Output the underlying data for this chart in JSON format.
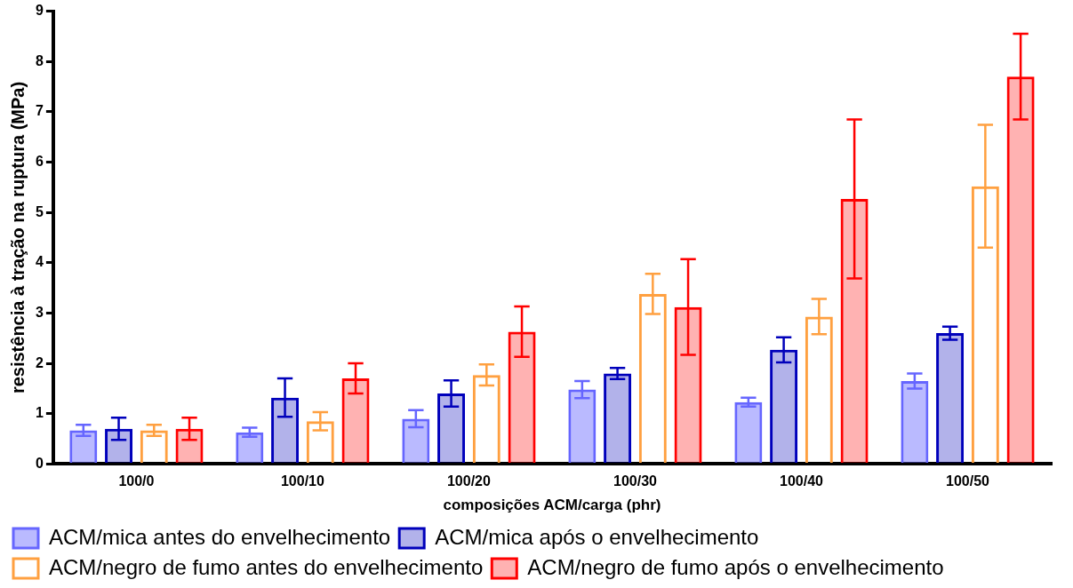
{
  "chart_data": {
    "type": "bar",
    "xlabel": "composições ACM/carga (phr)",
    "ylabel": "resistência à tração na ruptura (MPa)",
    "categories": [
      "100/0",
      "100/10",
      "100/20",
      "100/30",
      "100/40",
      "100/50"
    ],
    "series": [
      {
        "name": "ACM/mica antes do envelhecimento",
        "color": "#6666ff",
        "values": [
          0.67,
          0.63,
          0.9,
          1.48,
          1.23,
          1.65
        ],
        "errors": [
          0.11,
          0.09,
          0.17,
          0.17,
          0.09,
          0.15
        ]
      },
      {
        "name": "ACM/mica após o envelhecimento",
        "color": "#0000bb",
        "values": [
          0.7,
          1.32,
          1.4,
          1.8,
          2.27,
          2.6
        ],
        "errors": [
          0.22,
          0.38,
          0.26,
          0.11,
          0.25,
          0.13
        ]
      },
      {
        "name": "ACM/negro de fumo antes do envelhecimento",
        "color": "#ffa040",
        "values": [
          0.67,
          0.85,
          1.77,
          3.38,
          2.93,
          5.52
        ],
        "errors": [
          0.11,
          0.18,
          0.21,
          0.4,
          0.35,
          1.22
        ]
      },
      {
        "name": "ACM/negro de fumo após o envelhecimento",
        "color": "#ff0000",
        "values": [
          0.7,
          1.7,
          2.63,
          3.12,
          5.27,
          7.7
        ],
        "errors": [
          0.22,
          0.3,
          0.5,
          0.95,
          1.58,
          0.85
        ]
      }
    ],
    "ylim": [
      0,
      9
    ],
    "yticks": [
      0,
      1,
      2,
      3,
      4,
      5,
      6,
      7,
      8,
      9
    ],
    "grid": false,
    "legend": "bottom"
  }
}
